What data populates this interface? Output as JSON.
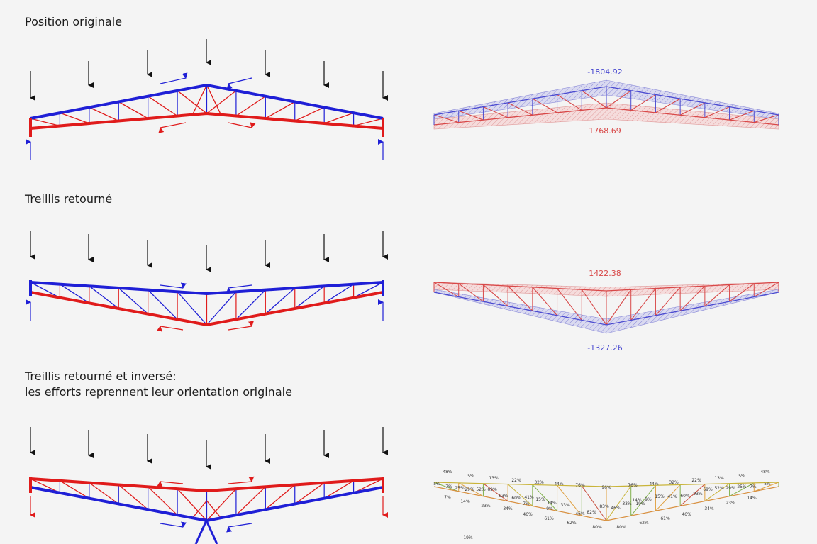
{
  "sections": [
    {
      "title": "Position originale",
      "compression_label": "-1804.92",
      "tension_label": "1768.69"
    },
    {
      "title": "Treillis retourné",
      "tension_label": "1422.38",
      "compression_label": "-1327.26"
    },
    {
      "title": "Treillis retourné et inversé:",
      "subtitle": "les efforts reprennent leur orientation originale",
      "utilization": [
        "48%",
        "5%",
        "13%",
        "22%",
        "32%",
        "44%",
        "76%",
        "96%",
        "76%",
        "44%",
        "32%",
        "22%",
        "13%",
        "5%",
        "48%",
        "5%",
        "7%",
        "25%",
        "29%",
        "52%",
        "69%",
        "93%",
        "60%",
        "41%",
        "15%",
        "14%",
        "33%",
        "46%",
        "82%",
        "83%",
        "46%",
        "33%",
        "14%",
        "9%",
        "15%",
        "41%",
        "60%",
        "93%",
        "69%",
        "52%",
        "29%",
        "25%",
        "7%",
        "5%",
        "7%",
        "14%",
        "23%",
        "34%",
        "46%",
        "61%",
        "62%",
        "80%",
        "80%",
        "62%",
        "61%",
        "46%",
        "34%",
        "23%",
        "14%",
        "7%",
        "9%",
        "19%",
        "19%"
      ]
    }
  ],
  "colors": {
    "compression": "#1f1fd6",
    "tension": "#e01b1b",
    "load": "#111111",
    "text": "#1c1c1c",
    "fea_blue": "#4a4ad0",
    "fea_red": "#d84848"
  }
}
